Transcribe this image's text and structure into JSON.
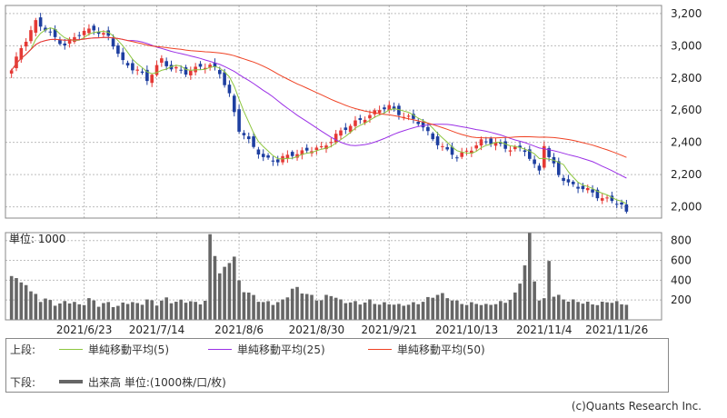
{
  "chart_data": [
    {
      "type": "candlestick",
      "ylim": [
        1930,
        3250
      ],
      "yticks": [
        2000,
        2200,
        2400,
        2600,
        2800,
        3000,
        3200
      ],
      "ytick_labels": [
        "2,000",
        "2,200",
        "2,400",
        "2,600",
        "2,800",
        "3,000",
        "3,200"
      ],
      "grid": true,
      "n_sessions": 134,
      "x_tick_labels": [
        "2021/6/23",
        "2021/7/14",
        "2021/8/6",
        "2021/8/30",
        "2021/9/21",
        "2021/10/13",
        "2021/11/4",
        "2021/11/26"
      ],
      "x_tick_sessions": [
        15,
        30,
        47,
        63,
        78,
        94,
        110,
        125
      ],
      "bull_color": "#e53935",
      "bear_color": "#1e3fa0",
      "close_anchors": [
        [
          0,
          2840
        ],
        [
          2,
          2990
        ],
        [
          5,
          3150
        ],
        [
          8,
          3070
        ],
        [
          11,
          3010
        ],
        [
          14,
          3070
        ],
        [
          17,
          3110
        ],
        [
          20,
          3050
        ],
        [
          23,
          2900
        ],
        [
          26,
          2850
        ],
        [
          28,
          2780
        ],
        [
          31,
          2920
        ],
        [
          33,
          2860
        ],
        [
          36,
          2830
        ],
        [
          39,
          2880
        ],
        [
          41,
          2870
        ],
        [
          43,
          2830
        ],
        [
          45,
          2700
        ],
        [
          47,
          2480
        ],
        [
          49,
          2400
        ],
        [
          52,
          2310
        ],
        [
          55,
          2280
        ],
        [
          58,
          2330
        ],
        [
          61,
          2350
        ],
        [
          64,
          2360
        ],
        [
          67,
          2450
        ],
        [
          70,
          2500
        ],
        [
          73,
          2560
        ],
        [
          76,
          2600
        ],
        [
          78,
          2620
        ],
        [
          81,
          2570
        ],
        [
          84,
          2520
        ],
        [
          87,
          2430
        ],
        [
          90,
          2340
        ],
        [
          92,
          2310
        ],
        [
          94,
          2350
        ],
        [
          97,
          2400
        ],
        [
          100,
          2400
        ],
        [
          103,
          2360
        ],
        [
          106,
          2350
        ],
        [
          108,
          2260
        ],
        [
          109,
          2230
        ],
        [
          110,
          2390
        ],
        [
          111,
          2300
        ],
        [
          113,
          2200
        ],
        [
          115,
          2150
        ],
        [
          118,
          2110
        ],
        [
          121,
          2070
        ],
        [
          124,
          2040
        ],
        [
          126,
          2000
        ],
        [
          127,
          1970
        ]
      ],
      "series": [
        {
          "name": "単純移動平均(5)",
          "color": "#8dc63f",
          "window": 5
        },
        {
          "name": "単純移動平均(25)",
          "color": "#9b30e6",
          "window": 25
        },
        {
          "name": "単純移動平均(50)",
          "color": "#ef4123",
          "window": 50
        }
      ]
    },
    {
      "type": "bar",
      "title": "出来高",
      "ylim": [
        0,
        880
      ],
      "yticks": [
        200,
        400,
        600,
        800
      ],
      "ytick_labels": [
        "200",
        "400",
        "600",
        "800"
      ],
      "grid": true,
      "bar_color": "#666666",
      "volume_anchors": [
        [
          0,
          520
        ],
        [
          1,
          380
        ],
        [
          2,
          340
        ],
        [
          3,
          410
        ],
        [
          4,
          260
        ],
        [
          6,
          210
        ],
        [
          8,
          180
        ],
        [
          10,
          150
        ],
        [
          12,
          190
        ],
        [
          14,
          140
        ],
        [
          16,
          200
        ],
        [
          18,
          150
        ],
        [
          20,
          160
        ],
        [
          22,
          130
        ],
        [
          24,
          180
        ],
        [
          26,
          150
        ],
        [
          28,
          190
        ],
        [
          30,
          160
        ],
        [
          32,
          200
        ],
        [
          34,
          170
        ],
        [
          36,
          190
        ],
        [
          38,
          160
        ],
        [
          40,
          180
        ],
        [
          41,
          760
        ],
        [
          42,
          700
        ],
        [
          43,
          440
        ],
        [
          44,
          470
        ],
        [
          45,
          620
        ],
        [
          46,
          600
        ],
        [
          47,
          350
        ],
        [
          48,
          300
        ],
        [
          49,
          260
        ],
        [
          50,
          220
        ],
        [
          52,
          170
        ],
        [
          54,
          160
        ],
        [
          56,
          180
        ],
        [
          58,
          300
        ],
        [
          60,
          280
        ],
        [
          62,
          220
        ],
        [
          64,
          190
        ],
        [
          66,
          250
        ],
        [
          68,
          180
        ],
        [
          70,
          170
        ],
        [
          72,
          160
        ],
        [
          74,
          180
        ],
        [
          76,
          150
        ],
        [
          78,
          160
        ],
        [
          80,
          140
        ],
        [
          82,
          150
        ],
        [
          84,
          160
        ],
        [
          86,
          200
        ],
        [
          88,
          250
        ],
        [
          90,
          220
        ],
        [
          92,
          170
        ],
        [
          94,
          150
        ],
        [
          96,
          160
        ],
        [
          98,
          140
        ],
        [
          100,
          160
        ],
        [
          102,
          170
        ],
        [
          104,
          240
        ],
        [
          105,
          360
        ],
        [
          106,
          560
        ],
        [
          107,
          850
        ],
        [
          108,
          380
        ],
        [
          109,
          200
        ],
        [
          110,
          190
        ],
        [
          111,
          580
        ],
        [
          112,
          240
        ],
        [
          114,
          200
        ],
        [
          116,
          180
        ],
        [
          118,
          170
        ],
        [
          120,
          150
        ],
        [
          122,
          160
        ],
        [
          124,
          180
        ],
        [
          126,
          150
        ],
        [
          127,
          160
        ]
      ]
    }
  ],
  "panels": {
    "volume_unit_label": "単位: 1000"
  },
  "legend": {
    "upper_label": "上段:",
    "lower_label": "下段:",
    "items": [
      {
        "label": "単純移動平均(5)",
        "color": "#8dc63f"
      },
      {
        "label": "単純移動平均(25)",
        "color": "#9b30e6"
      },
      {
        "label": "単純移動平均(50)",
        "color": "#ef4123"
      }
    ],
    "volume_label": "出来高 単位:(1000株/口/枚)",
    "volume_color": "#666666"
  },
  "footer": {
    "copyright": "(c)Quants Research Inc."
  }
}
